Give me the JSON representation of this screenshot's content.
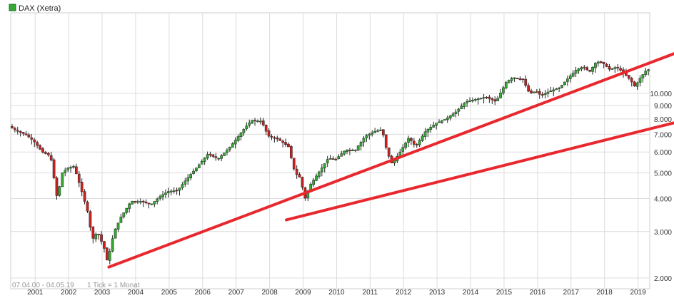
{
  "legend": {
    "label": "DAX (Xetra)",
    "swatch_color": "#33aa33"
  },
  "footer": {
    "range": "07.04.00 - 04.05.19",
    "tick": "1 Tick = 1 Monat"
  },
  "colors": {
    "up": "#33aa33",
    "down": "#cc2020",
    "grid": "#dcdcdc",
    "trend": "#e8282e"
  },
  "chart_data": {
    "type": "candlestick",
    "title": "DAX (Xetra)",
    "xlabel": "",
    "ylabel": "",
    "y_scale": "log",
    "ylim": [
      1950,
      16000
    ],
    "grid": true,
    "legend_position": "top-left",
    "x_ticks": [
      "2001",
      "2002",
      "2003",
      "2004",
      "2005",
      "2006",
      "2007",
      "2008",
      "2009",
      "2010",
      "2011",
      "2012",
      "2013",
      "2014",
      "2015",
      "2016",
      "2017",
      "2018",
      "2019"
    ],
    "y_ticks": [
      2000,
      3000,
      4000,
      5000,
      6000,
      7000,
      8000,
      9000,
      10000
    ],
    "y_tick_labels": [
      "2.000",
      "3.000",
      "4.000",
      "5.000",
      "6.000",
      "7.000",
      "8.000",
      "9.000",
      "10.000"
    ],
    "series": [
      {
        "values_interval": "1 month",
        "points": [
          [
            2000.27,
            7500
          ],
          [
            2000.5,
            7200
          ],
          [
            2000.75,
            7000
          ],
          [
            2001.0,
            6600
          ],
          [
            2001.25,
            6000
          ],
          [
            2001.5,
            5800
          ],
          [
            2001.7,
            4000
          ],
          [
            2001.85,
            5000
          ],
          [
            2002.0,
            5200
          ],
          [
            2002.2,
            5300
          ],
          [
            2002.4,
            4400
          ],
          [
            2002.6,
            3600
          ],
          [
            2002.75,
            2800
          ],
          [
            2002.9,
            3000
          ],
          [
            2003.1,
            2600
          ],
          [
            2003.2,
            2300
          ],
          [
            2003.4,
            3000
          ],
          [
            2003.6,
            3400
          ],
          [
            2003.9,
            3900
          ],
          [
            2004.2,
            3900
          ],
          [
            2004.5,
            3800
          ],
          [
            2004.8,
            4100
          ],
          [
            2005.0,
            4250
          ],
          [
            2005.3,
            4300
          ],
          [
            2005.6,
            4800
          ],
          [
            2005.9,
            5300
          ],
          [
            2006.2,
            5900
          ],
          [
            2006.5,
            5650
          ],
          [
            2006.8,
            6150
          ],
          [
            2007.0,
            6600
          ],
          [
            2007.3,
            7400
          ],
          [
            2007.5,
            7900
          ],
          [
            2007.8,
            7850
          ],
          [
            2008.0,
            6900
          ],
          [
            2008.3,
            6700
          ],
          [
            2008.6,
            6300
          ],
          [
            2008.8,
            5000
          ],
          [
            2008.95,
            4800
          ],
          [
            2009.1,
            4000
          ],
          [
            2009.25,
            4500
          ],
          [
            2009.5,
            5000
          ],
          [
            2009.8,
            5700
          ],
          [
            2010.0,
            5600
          ],
          [
            2010.3,
            6100
          ],
          [
            2010.6,
            6100
          ],
          [
            2010.9,
            6900
          ],
          [
            2011.2,
            7200
          ],
          [
            2011.4,
            7300
          ],
          [
            2011.55,
            6000
          ],
          [
            2011.7,
            5400
          ],
          [
            2011.9,
            5900
          ],
          [
            2012.2,
            6800
          ],
          [
            2012.4,
            6300
          ],
          [
            2012.7,
            7200
          ],
          [
            2013.0,
            7700
          ],
          [
            2013.3,
            8000
          ],
          [
            2013.6,
            8500
          ],
          [
            2013.9,
            9300
          ],
          [
            2014.2,
            9500
          ],
          [
            2014.5,
            9700
          ],
          [
            2014.8,
            9300
          ],
          [
            2015.1,
            11000
          ],
          [
            2015.3,
            11500
          ],
          [
            2015.6,
            11300
          ],
          [
            2015.8,
            10000
          ],
          [
            2016.0,
            10200
          ],
          [
            2016.15,
            9800
          ],
          [
            2016.4,
            10200
          ],
          [
            2016.7,
            10500
          ],
          [
            2016.95,
            11400
          ],
          [
            2017.2,
            12300
          ],
          [
            2017.4,
            12600
          ],
          [
            2017.6,
            12100
          ],
          [
            2017.8,
            13200
          ],
          [
            2018.0,
            13000
          ],
          [
            2018.2,
            12300
          ],
          [
            2018.4,
            12600
          ],
          [
            2018.6,
            12000
          ],
          [
            2018.8,
            11300
          ],
          [
            2018.95,
            10600
          ],
          [
            2019.1,
            11400
          ],
          [
            2019.3,
            12300
          ]
        ]
      }
    ],
    "trendlines": [
      {
        "from": [
          2003.2,
          2200
        ],
        "to": [
          2021.2,
          16000
        ]
      },
      {
        "from": [
          2008.5,
          3320
        ],
        "to": [
          2021.2,
          8400
        ]
      }
    ]
  }
}
